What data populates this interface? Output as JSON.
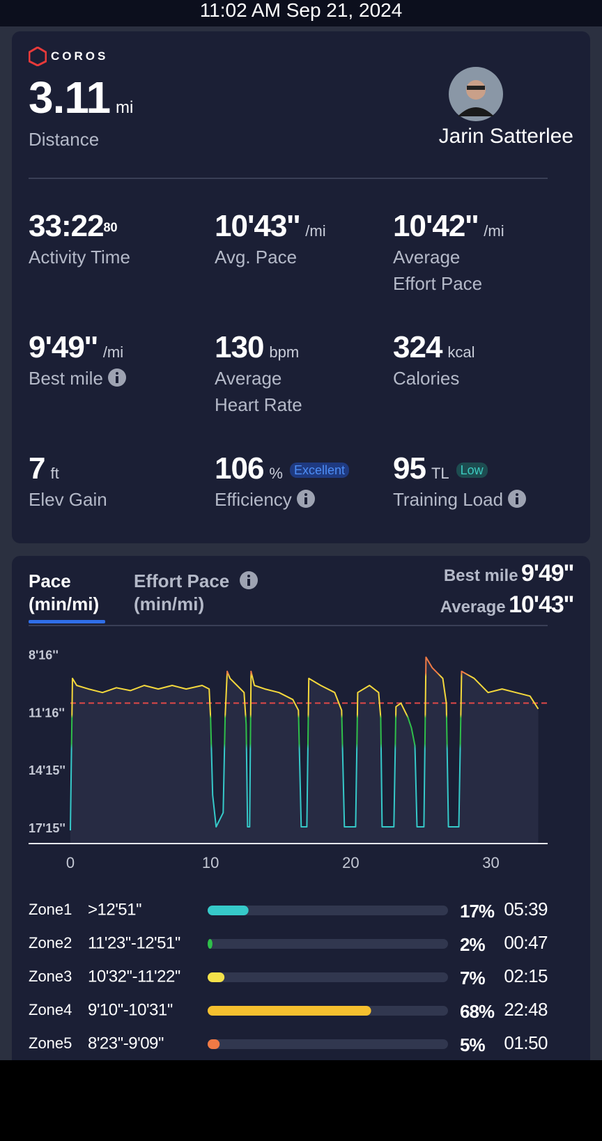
{
  "header": {
    "datetime": "11:02 AM Sep 21, 2024"
  },
  "summary": {
    "brand": "COROS",
    "distance": "3.11",
    "distance_unit": "mi",
    "distance_label": "Distance",
    "athlete": "Jarin Satterlee"
  },
  "stats": [
    {
      "value": "33:22",
      "fraction": "80",
      "label": "Activity Time"
    },
    {
      "value": "10'43''",
      "unit": "/mi",
      "label": "Avg. Pace"
    },
    {
      "value": "10'42''",
      "unit": "/mi",
      "label": "Average Effort Pace"
    },
    {
      "value": "9'49''",
      "unit": "/mi",
      "label": "Best mile"
    },
    {
      "value": "130",
      "unit": "bpm",
      "label": "Average Heart Rate"
    },
    {
      "value": "324",
      "unit": "kcal",
      "label": "Calories"
    },
    {
      "value": "7",
      "unit": "ft",
      "label": "Elev Gain"
    },
    {
      "value": "106",
      "unit": "%",
      "badge": "Excellent",
      "label": "Efficiency"
    },
    {
      "value": "95",
      "unit": "TL",
      "badge": "Low",
      "label": "Training Load"
    }
  ],
  "pace_panel": {
    "tabs": [
      {
        "title": "Pace",
        "unit": "(min/mi)"
      },
      {
        "title": "Effort Pace",
        "unit": "(min/mi)"
      }
    ],
    "best_label": "Best mile",
    "best_value": "9'49''",
    "avg_label": "Average",
    "avg_value": "10'43''"
  },
  "chart_data": [
    {
      "type": "line",
      "x": [
        0,
        0.15,
        0.45,
        1.29,
        2.29,
        3.28,
        4.28,
        5.27,
        6.27,
        7.26,
        8.26,
        9.4,
        9.9,
        10.0,
        10.15,
        10.4,
        10.9,
        11.04,
        11.19,
        11.39,
        11.89,
        12.39,
        12.54,
        12.64,
        12.79,
        12.89,
        13.13,
        13.88,
        14.88,
        15.87,
        16.27,
        16.47,
        16.87,
        17.01,
        17.86,
        18.86,
        19.35,
        19.55,
        20.35,
        20.5,
        21.34,
        21.99,
        22.14,
        22.24,
        23.08,
        23.23,
        23.58,
        24.08,
        24.33,
        24.58,
        24.73,
        25.22,
        25.37,
        25.82,
        26.57,
        26.82,
        26.97,
        27.71,
        27.91,
        28.81,
        29.8,
        30.8,
        31.79,
        32.79,
        33.38
      ],
      "values": [
        1039,
        566,
        588,
        599,
        610,
        595,
        604,
        588,
        599,
        588,
        599,
        588,
        599,
        687,
        929,
        1028,
        984,
        687,
        544,
        566,
        588,
        610,
        709,
        1028,
        1028,
        544,
        588,
        599,
        610,
        632,
        665,
        1028,
        1028,
        566,
        588,
        610,
        665,
        1028,
        1028,
        610,
        588,
        610,
        687,
        1028,
        1028,
        654,
        643,
        687,
        720,
        775,
        1028,
        1028,
        500,
        533,
        566,
        643,
        1028,
        1028,
        544,
        566,
        610,
        599,
        610,
        621,
        661
      ],
      "colors": [
        "#f07a45",
        "#f4d83c",
        "#2fbf4a",
        "#36c9c9"
      ],
      "average": 643,
      "average_color": "#e04848",
      "xlim": [
        0,
        34
      ],
      "xticks": [
        0,
        10,
        20,
        30
      ],
      "ylim": [
        1080,
        460
      ],
      "yticks": [
        {
          "value": 496,
          "label": "8'16''"
        },
        {
          "value": 676,
          "label": "11'16''"
        },
        {
          "value": 855,
          "label": "14'15''"
        },
        {
          "value": 1035,
          "label": "17'15''"
        }
      ],
      "grid": false
    },
    {
      "type": "hbar",
      "categories": [
        "Zone1",
        "Zone2",
        "Zone3",
        "Zone4",
        "Zone5"
      ],
      "ranges": [
        ">12'51''",
        "11'23''-12'51''",
        "10'32''-11'22''",
        "9'10''-10'31''",
        "8'23''-9'09''"
      ],
      "values": [
        17,
        2,
        7,
        68,
        5
      ],
      "value_labels": [
        "17%",
        "2%",
        "7%",
        "68%",
        "5%"
      ],
      "times": [
        "05:39",
        "00:47",
        "02:15",
        "22:48",
        "01:50"
      ],
      "colors": [
        "#36c9c9",
        "#2fbf4a",
        "#f4e24a",
        "#f6c02f",
        "#f07a45"
      ],
      "xlim": [
        0,
        100
      ]
    }
  ]
}
